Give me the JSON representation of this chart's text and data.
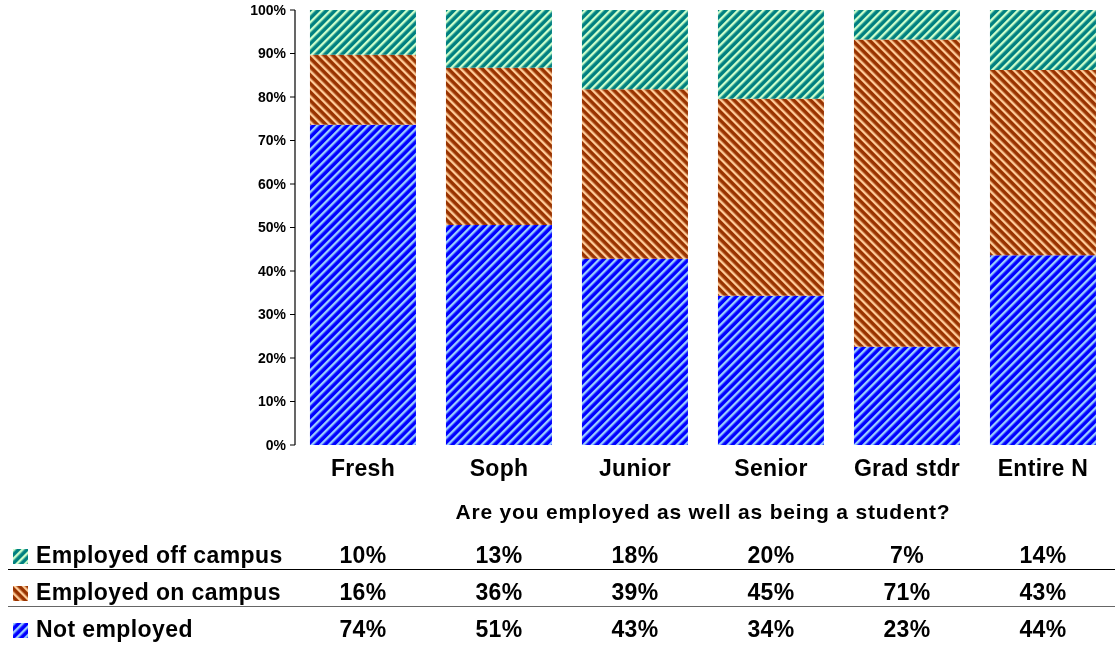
{
  "chart_data": {
    "type": "bar",
    "stacked": true,
    "categories": [
      "Fresh",
      "Soph",
      "Junior",
      "Senior",
      "Grad stdr",
      "Entire N"
    ],
    "xlabel": "Are you employed as well as being a student?",
    "ylim": [
      0,
      100
    ],
    "yticks": [
      {
        "value": 0,
        "label": "0%"
      },
      {
        "value": 10,
        "label": "10%"
      },
      {
        "value": 20,
        "label": "20%"
      },
      {
        "value": 30,
        "label": "30%"
      },
      {
        "value": 40,
        "label": "40%"
      },
      {
        "value": 50,
        "label": "50%"
      },
      {
        "value": 60,
        "label": "60%"
      },
      {
        "value": 70,
        "label": "70%"
      },
      {
        "value": 80,
        "label": "80%"
      },
      {
        "value": 90,
        "label": "90%"
      },
      {
        "value": 100,
        "label": "100%"
      }
    ],
    "series": [
      {
        "name": "Not employed",
        "color": "#0000ff",
        "values": [
          73.6,
          50.6,
          42.8,
          34.3,
          22.6,
          43.6
        ],
        "value_labels": [
          "74%",
          "51%",
          "43%",
          "34%",
          "23%",
          "44%"
        ]
      },
      {
        "name": "Employed on campus",
        "color": "#993300",
        "values": [
          16.1,
          36.1,
          39.0,
          45.3,
          70.6,
          42.6
        ],
        "value_labels": [
          "16%",
          "36%",
          "39%",
          "45%",
          "71%",
          "43%"
        ]
      },
      {
        "name": "Employed off campus",
        "color": "#008080",
        "values": [
          10.3,
          13.3,
          18.2,
          20.4,
          6.8,
          13.8
        ],
        "value_labels": [
          "10%",
          "13%",
          "18%",
          "20%",
          "7%",
          "14%"
        ]
      }
    ],
    "legend": "bottom"
  }
}
